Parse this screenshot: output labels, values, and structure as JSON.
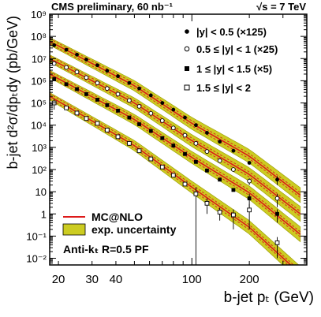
{
  "chart_data": {
    "type": "scatter",
    "title_left": "CMS preliminary, 60 nb⁻¹",
    "title_right": "√s = 7 TeV",
    "xlabel": "b-jet pₜ (GeV)",
    "ylabel": "b-jet d²σ/dpₜdy (pb/GeV)",
    "xscale": "log",
    "yscale": "log",
    "xlim": [
      18,
      400
    ],
    "ylim": [
      0.005,
      1000000000
    ],
    "x_ticks": [
      20,
      30,
      40,
      100,
      200
    ],
    "x_tick_labels": [
      "20",
      "30",
      "40",
      "100",
      "200"
    ],
    "y_ticks": [
      0.01,
      0.1,
      1,
      10,
      100,
      1000,
      10000,
      100000,
      1000000,
      10000000,
      100000000,
      1000000000
    ],
    "y_tick_labels": [
      "10⁻²",
      "10⁻¹",
      "1",
      "10",
      "10²",
      "10³",
      "10⁴",
      "10⁵",
      "10⁶",
      "10⁷",
      "10⁸",
      "10⁹"
    ],
    "legend_placement": "top-right",
    "bottom_legend_placement": "bottom-left",
    "series": [
      {
        "name": "|y| < 0.5 (×125)",
        "marker": "filled-circle",
        "x": [
          19,
          22,
          25,
          28,
          32,
          36,
          41,
          47,
          53,
          61,
          70,
          80,
          92,
          105,
          120,
          140,
          165,
          200,
          280
        ],
        "y": [
          40000000,
          25000000,
          15000000,
          9000000,
          5000000,
          2800000,
          1600000,
          800000,
          450000,
          220000,
          100000,
          50000,
          22000,
          10000,
          4500,
          1800,
          700,
          200,
          35
        ],
        "yerr": [
          0,
          0,
          0,
          0,
          0,
          0,
          0,
          0,
          0,
          0,
          0,
          0,
          0,
          0,
          0,
          0,
          0,
          0,
          15
        ],
        "theory": [
          [
            18,
            60000000
          ],
          [
            50,
            600000
          ],
          [
            100,
            12000
          ],
          [
            200,
            400
          ],
          [
            370,
            7
          ]
        ]
      },
      {
        "name": "0.5 ≤ |y| < 1 (×25)",
        "marker": "open-circle",
        "x": [
          19,
          22,
          25,
          28,
          32,
          36,
          41,
          47,
          53,
          61,
          70,
          80,
          92,
          105,
          120,
          140,
          165,
          200,
          280
        ],
        "y": [
          6000000,
          4000000,
          2500000,
          1400000,
          800000,
          450000,
          250000,
          130000,
          70000,
          34000,
          16000,
          7500,
          3500,
          1500,
          650,
          250,
          100,
          30,
          5
        ],
        "yerr": [
          0,
          0,
          0,
          0,
          0,
          0,
          0,
          0,
          0,
          0,
          0,
          0,
          0,
          0,
          0,
          0,
          0,
          10,
          3
        ],
        "theory": [
          [
            18,
            10000000
          ],
          [
            50,
            100000
          ],
          [
            100,
            2000
          ],
          [
            200,
            60
          ],
          [
            370,
            1
          ]
        ]
      },
      {
        "name": "1 ≤ |y| < 1.5 (×5)",
        "marker": "filled-square",
        "x": [
          19,
          22,
          25,
          28,
          32,
          36,
          41,
          47,
          53,
          61,
          70,
          80,
          92,
          105,
          120,
          140,
          165,
          200,
          280
        ],
        "y": [
          1200000,
          700000,
          420000,
          250000,
          140000,
          80000,
          45000,
          22000,
          11000,
          5500,
          2600,
          1200,
          500,
          220,
          90,
          35,
          12,
          5,
          1
        ],
        "yerr": [
          0,
          0,
          0,
          0,
          0,
          0,
          0,
          0,
          0,
          0,
          0,
          0,
          0,
          0,
          0,
          0,
          0,
          3,
          0.6
        ],
        "theory": [
          [
            18,
            2000000
          ],
          [
            50,
            18000
          ],
          [
            100,
            350
          ],
          [
            200,
            9
          ],
          [
            370,
            0.12
          ]
        ]
      },
      {
        "name": "1.5 ≤ |y| < 2",
        "marker": "open-square",
        "x": [
          19,
          22,
          25,
          28,
          32,
          36,
          41,
          47,
          53,
          61,
          70,
          80,
          92,
          105,
          120,
          140,
          165,
          200,
          280
        ],
        "y": [
          100000,
          60000,
          35000,
          20000,
          12000,
          6000,
          3000,
          1500,
          700,
          300,
          130,
          55,
          22,
          8,
          3,
          1.2,
          0.9,
          1.5,
          0.05
        ],
        "yerr": [
          50000,
          0,
          0,
          0,
          0,
          0,
          0,
          0,
          0,
          0,
          0,
          0,
          0,
          8,
          2,
          0.7,
          0.7,
          1.3,
          0.04
        ],
        "theory": [
          [
            18,
            200000
          ],
          [
            50,
            1200
          ],
          [
            100,
            16
          ],
          [
            200,
            0.25
          ],
          [
            370,
            0.002
          ]
        ]
      }
    ],
    "bottom_legend": [
      {
        "label": "MC@NLO",
        "style": "red-line"
      },
      {
        "label": "exp. uncertainty",
        "style": "olive-band"
      }
    ],
    "annotation": "Anti-kₜ R=0.5 PF",
    "colors": {
      "theory_line": "#dd1a1a",
      "uncertainty_band": "#cccc22",
      "band_edge": "#999900",
      "markers": "#000000"
    }
  }
}
